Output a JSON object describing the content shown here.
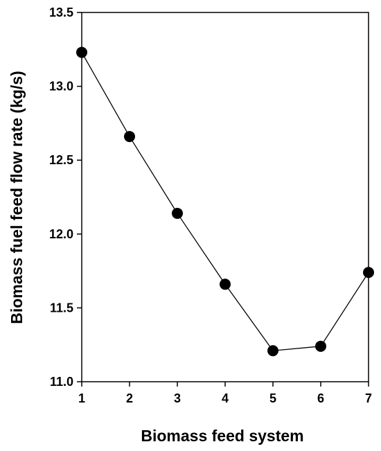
{
  "chart_data": {
    "type": "line",
    "title": "",
    "xlabel": "Biomass feed system",
    "ylabel": "Biomass fuel feed flow rate (kg/s)",
    "x": [
      1,
      2,
      3,
      4,
      5,
      6,
      7
    ],
    "series": [
      {
        "values": [
          13.23,
          12.66,
          12.14,
          11.66,
          11.21,
          11.24,
          11.74
        ]
      }
    ],
    "xlim": [
      1,
      7
    ],
    "ylim": [
      11.0,
      13.5
    ],
    "xticks": [
      "1",
      "2",
      "3",
      "4",
      "5",
      "6",
      "7"
    ],
    "yticks": [
      "11.0",
      "11.5",
      "12.0",
      "12.5",
      "13.0",
      "13.5"
    ],
    "grid": false,
    "legend": "none",
    "line_color": "#000000",
    "marker_color": "#000000",
    "marker": "filled-circle"
  }
}
